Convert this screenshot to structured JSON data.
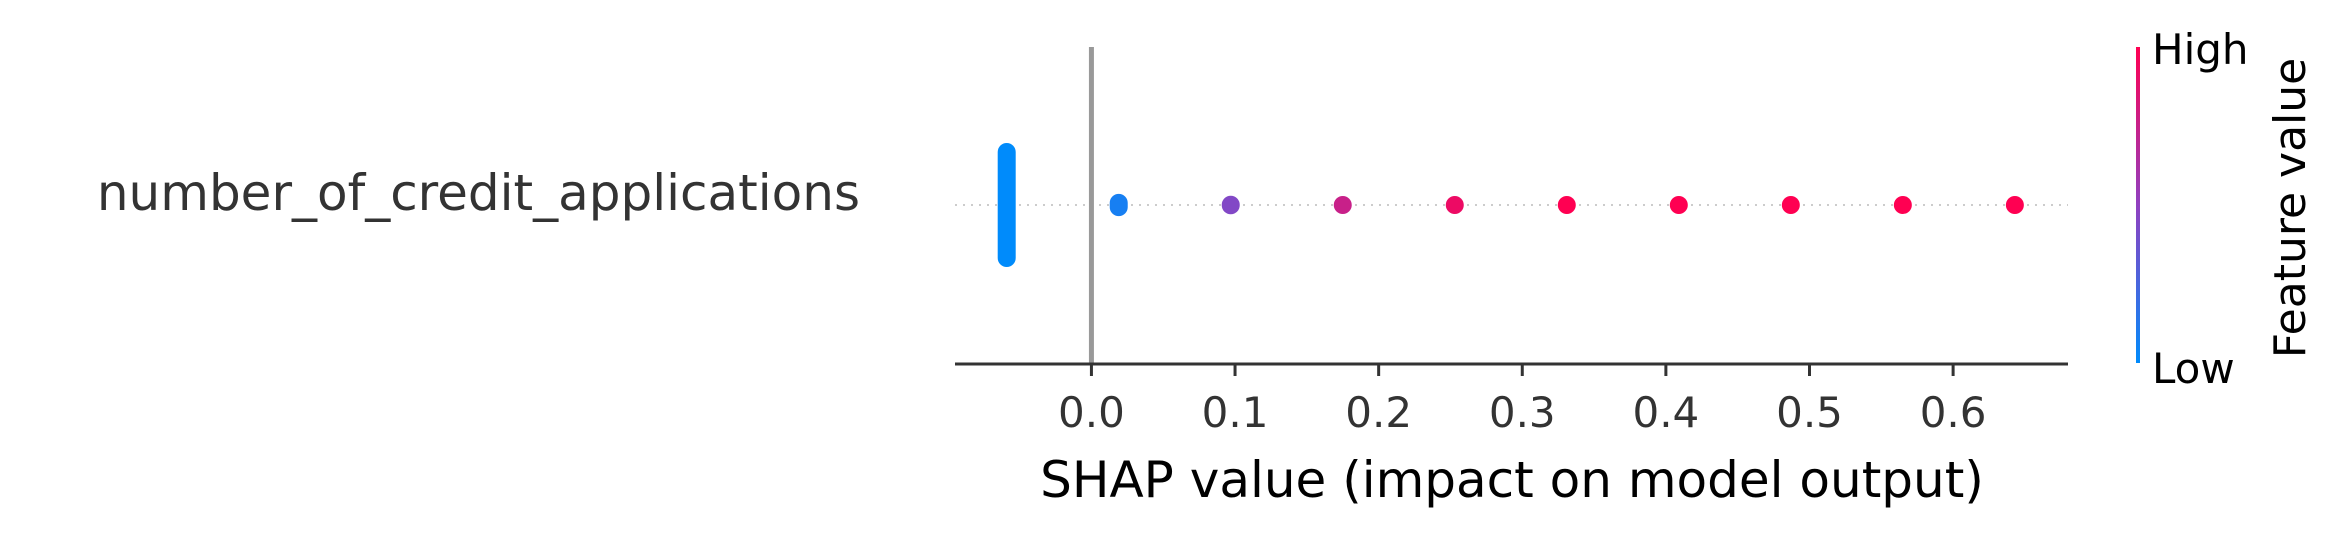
{
  "chart_data": {
    "type": "scatter",
    "plot_style": "shap-beeswarm",
    "feature": "number_of_credit_applications",
    "xlabel": "SHAP value (impact on model output)",
    "xticks": [
      0.0,
      0.1,
      0.2,
      0.3,
      0.4,
      0.5,
      0.6
    ],
    "xtick_labels": [
      "0.0",
      "0.1",
      "0.2",
      "0.3",
      "0.4",
      "0.5",
      "0.6"
    ],
    "xlim": [
      -0.095,
      0.68
    ],
    "zero_line": 0.0,
    "grid": false,
    "colorbar": {
      "label": "Feature value",
      "high_label": "High",
      "low_label": "Low",
      "high_color": "#ff0052",
      "low_color": "#008bfb"
    },
    "points": [
      {
        "shap": -0.059,
        "spread": 1.0,
        "feature_value": 0.0
      },
      {
        "shap": 0.019,
        "spread": 0.18,
        "feature_value": 0.08
      },
      {
        "shap": 0.097,
        "spread": 0.15,
        "feature_value": 0.45
      },
      {
        "shap": 0.175,
        "spread": 0.14,
        "feature_value": 0.75
      },
      {
        "shap": 0.253,
        "spread": 0.13,
        "feature_value": 0.92
      },
      {
        "shap": 0.331,
        "spread": 0.11,
        "feature_value": 1.0
      },
      {
        "shap": 0.409,
        "spread": 0.11,
        "feature_value": 1.0
      },
      {
        "shap": 0.487,
        "spread": 0.11,
        "feature_value": 1.0
      },
      {
        "shap": 0.565,
        "spread": 0.11,
        "feature_value": 1.0
      },
      {
        "shap": 0.643,
        "spread": 0.11,
        "feature_value": 1.0
      }
    ]
  }
}
